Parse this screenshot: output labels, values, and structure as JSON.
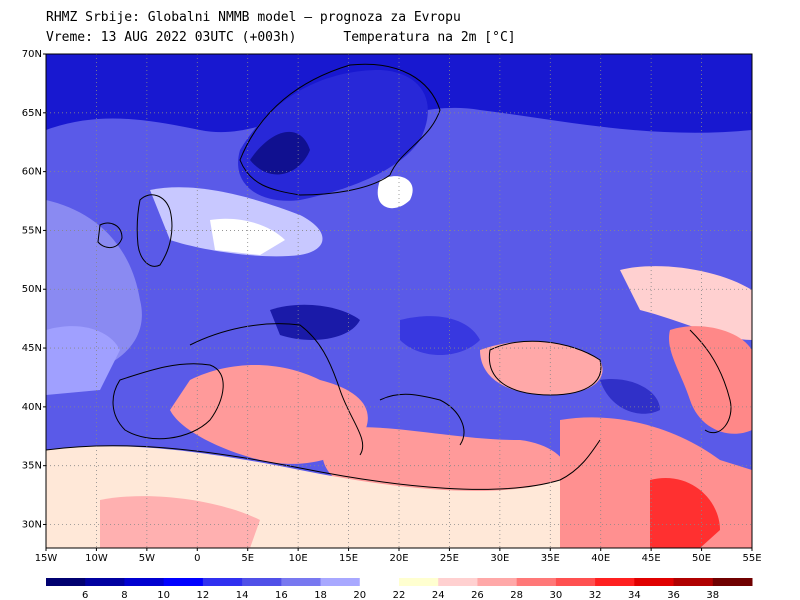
{
  "header": {
    "line1": "RHMZ Srbije: Globalni NMMB model — prognoza za Evropu",
    "line2_left": "Vreme: 13 AUG 2022 03UTC (+003h)",
    "line2_right": "Temperatura na 2m [°C]"
  },
  "map": {
    "lon_range": [
      -15,
      55
    ],
    "lat_range": [
      28,
      70
    ],
    "lat_labels": [
      "70N",
      "65N",
      "60N",
      "55N",
      "50N",
      "45N",
      "40N",
      "35N",
      "30N"
    ],
    "lat_values": [
      70,
      65,
      60,
      55,
      50,
      45,
      40,
      35,
      30
    ],
    "lon_labels": [
      "15W",
      "10W",
      "5W",
      "0",
      "5E",
      "10E",
      "15E",
      "20E",
      "25E",
      "30E",
      "35E",
      "40E",
      "45E",
      "50E",
      "55E"
    ],
    "lon_values": [
      -15,
      -10,
      -5,
      0,
      5,
      10,
      15,
      20,
      25,
      30,
      35,
      40,
      45,
      50,
      55
    ],
    "grid": true
  },
  "legend": {
    "labels": [
      "6",
      "8",
      "10",
      "12",
      "14",
      "16",
      "18",
      "20",
      "22",
      "24",
      "26",
      "28",
      "30",
      "32",
      "34",
      "36",
      "38"
    ],
    "colors": [
      "#000070",
      "#0000a0",
      "#0000d0",
      "#0000ff",
      "#3030f0",
      "#5050e8",
      "#7878f0",
      "#a8a8ff",
      "#ffffff",
      "#ffffd0",
      "#ffd0d0",
      "#ffa8a8",
      "#ff7878",
      "#ff5050",
      "#ff2020",
      "#e00000",
      "#b00000",
      "#700000"
    ]
  },
  "regions": [
    {
      "name": "arctic-cold",
      "color": "#1010d8"
    },
    {
      "name": "scandinavia",
      "color": "#2020e0"
    },
    {
      "name": "central-europe",
      "color": "#6060e8"
    },
    {
      "name": "atlantic",
      "color": "#8888f0"
    },
    {
      "name": "mediterranean-warm",
      "color": "#ff9090"
    },
    {
      "name": "north-africa",
      "color": "#ffd0d0"
    },
    {
      "name": "hot-spots",
      "color": "#ff5050"
    }
  ]
}
